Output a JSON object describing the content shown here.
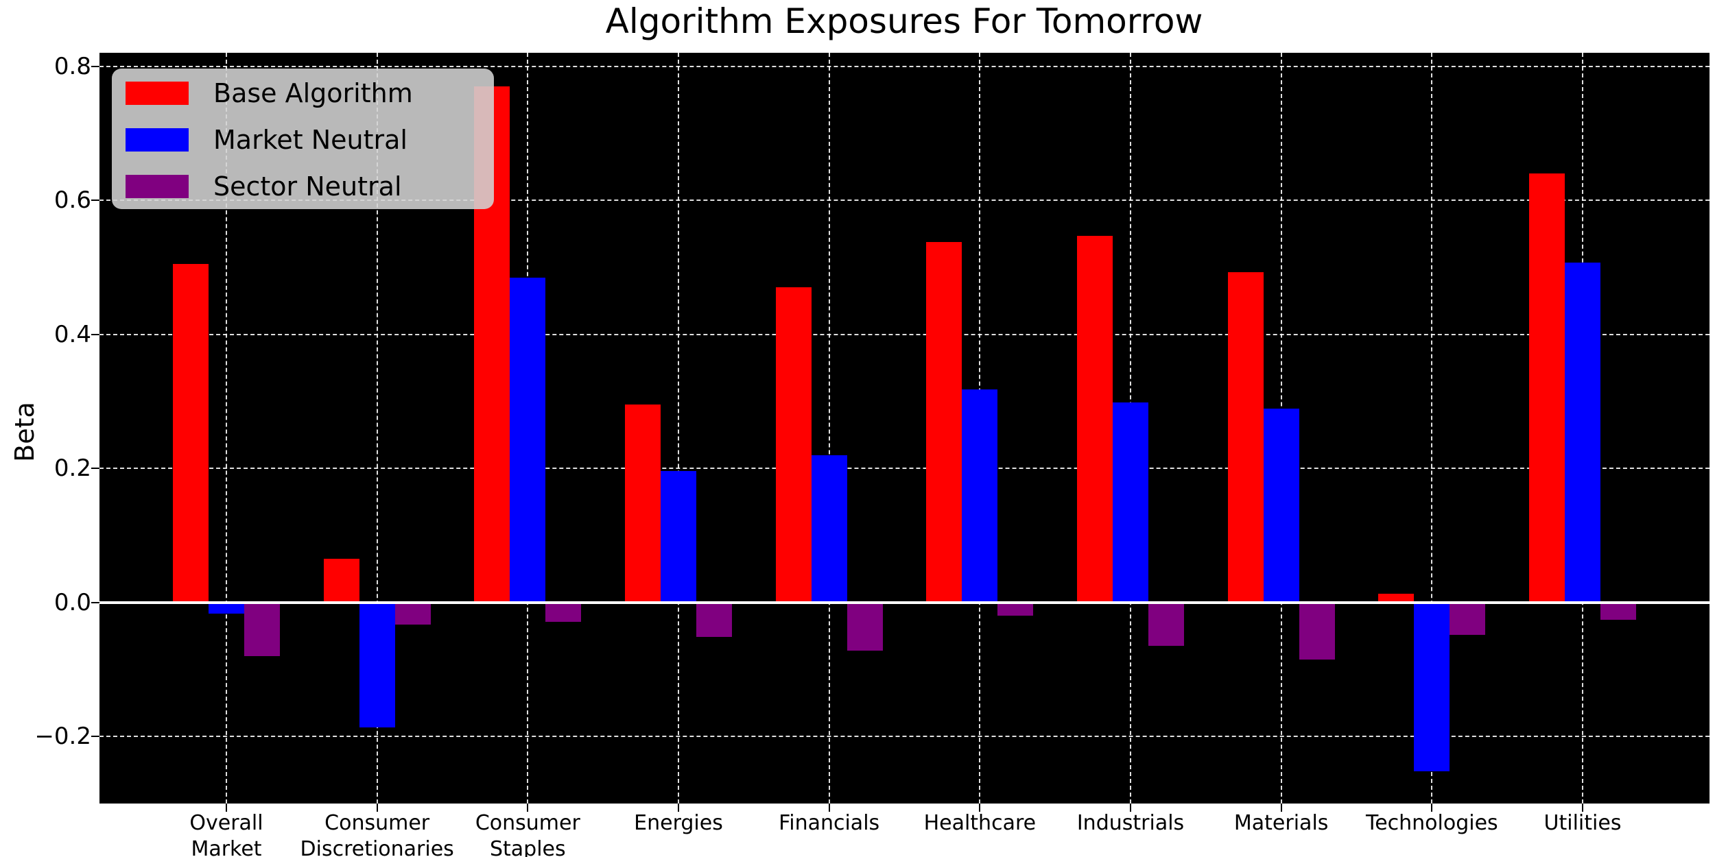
{
  "title": "Algorithm Exposures For Tomorrow",
  "axes": {
    "ylabel": "Beta"
  },
  "legend": {
    "items": [
      "Base Algorithm",
      "Market Neutral",
      "Sector Neutral"
    ]
  },
  "chart_data": {
    "type": "bar",
    "title": "Algorithm Exposures For Tomorrow",
    "xlabel": "",
    "ylabel": "Beta",
    "categories": [
      "Overall Market",
      "Consumer Discretionaries",
      "Consumer Staples",
      "Energies",
      "Financials",
      "Healthcare",
      "Industrials",
      "Materials",
      "Technologies",
      "Utilities"
    ],
    "x_tick_lines": [
      [
        "Overall",
        "Market"
      ],
      [
        "Consumer",
        "Discretionaries"
      ],
      [
        "Consumer",
        "Staples"
      ],
      [
        "Energies"
      ],
      [
        "Financials"
      ],
      [
        "Healthcare"
      ],
      [
        "Industrials"
      ],
      [
        "Materials"
      ],
      [
        "Technologies"
      ],
      [
        "Utilities"
      ]
    ],
    "series": [
      {
        "name": "Base Algorithm",
        "color": "#ff0000",
        "values": [
          0.505,
          0.065,
          0.77,
          0.295,
          0.47,
          0.538,
          0.547,
          0.493,
          0.013,
          0.64
        ]
      },
      {
        "name": "Market Neutral",
        "color": "#0000ff",
        "values": [
          -0.017,
          -0.186,
          0.485,
          0.196,
          0.22,
          0.318,
          0.298,
          0.289,
          -0.252,
          0.507
        ]
      },
      {
        "name": "Sector Neutral",
        "color": "#800080",
        "values": [
          -0.08,
          -0.033,
          -0.029,
          -0.051,
          -0.072,
          -0.02,
          -0.065,
          -0.085,
          -0.048,
          -0.026
        ]
      }
    ],
    "y_ticks": [
      0.8,
      0.6,
      0.4,
      0.2,
      0.0,
      -0.2
    ],
    "y_tick_labels": [
      "0.8",
      "0.6",
      "0.4",
      "0.2",
      "0.0",
      "−0.2"
    ],
    "ylim": [
      -0.3,
      0.82
    ],
    "grid": true,
    "grid_style": "dashed",
    "grid_color": "#ffffff",
    "zero_line": true,
    "plot_background": "#000000",
    "figure_background": "#ffffff",
    "legend_position": "upper left",
    "legend_background": "#d3d3d3"
  }
}
